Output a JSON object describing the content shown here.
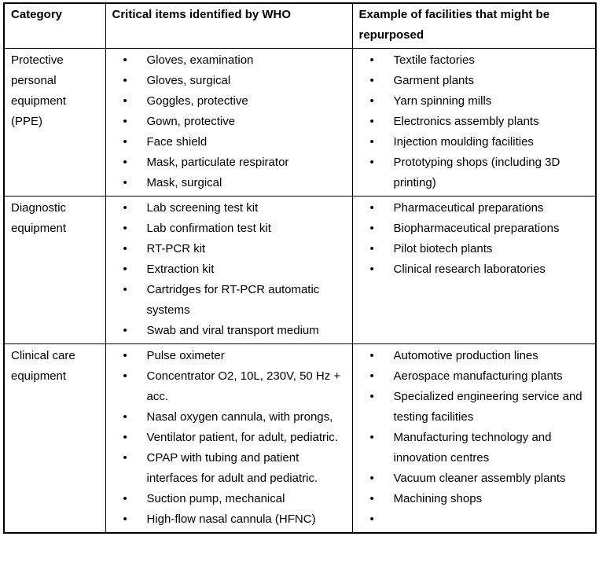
{
  "table": {
    "bullet": "•",
    "colors": {
      "border": "#000000",
      "text": "#000000",
      "background": "#ffffff"
    },
    "headers": {
      "category": "Category",
      "items": "Critical items identified by WHO",
      "facilities": "Example of facilities that might be repurposed"
    },
    "rows": [
      {
        "category": "Protective personal equipment (PPE)",
        "items": [
          "Gloves, examination",
          "Gloves, surgical",
          "Goggles, protective",
          "Gown, protective",
          "Face shield",
          "Mask, particulate respirator",
          "Mask, surgical"
        ],
        "facilities": [
          "Textile factories",
          "Garment plants",
          "Yarn spinning mills",
          "Electronics assembly plants",
          "Injection moulding facilities",
          "Prototyping shops (including 3D printing)"
        ]
      },
      {
        "category": "Diagnostic equipment",
        "items": [
          "Lab screening test kit",
          "Lab confirmation test kit",
          "RT-PCR kit",
          "Extraction kit",
          "Cartridges for RT-PCR automatic systems",
          "Swab and viral transport medium"
        ],
        "facilities": [
          "Pharmaceutical preparations",
          "Biopharmaceutical preparations",
          "Pilot biotech plants",
          "Clinical research laboratories"
        ]
      },
      {
        "category": "Clinical care equipment",
        "items": [
          "Pulse oximeter",
          "Concentrator O2, 10L, 230V, 50 Hz + acc.",
          "Nasal oxygen cannula, with prongs,",
          "Ventilator patient, for adult, pediatric.",
          "CPAP with tubing and patient interfaces for adult and pediatric.",
          "Suction pump, mechanical",
          "High-flow nasal cannula (HFNC)"
        ],
        "facilities": [
          "Automotive production lines",
          "Aerospace manufacturing plants",
          "Specialized engineering service and testing facilities",
          "Manufacturing technology and innovation centres",
          "Vacuum cleaner assembly plants",
          "Machining shops",
          ""
        ]
      }
    ]
  }
}
